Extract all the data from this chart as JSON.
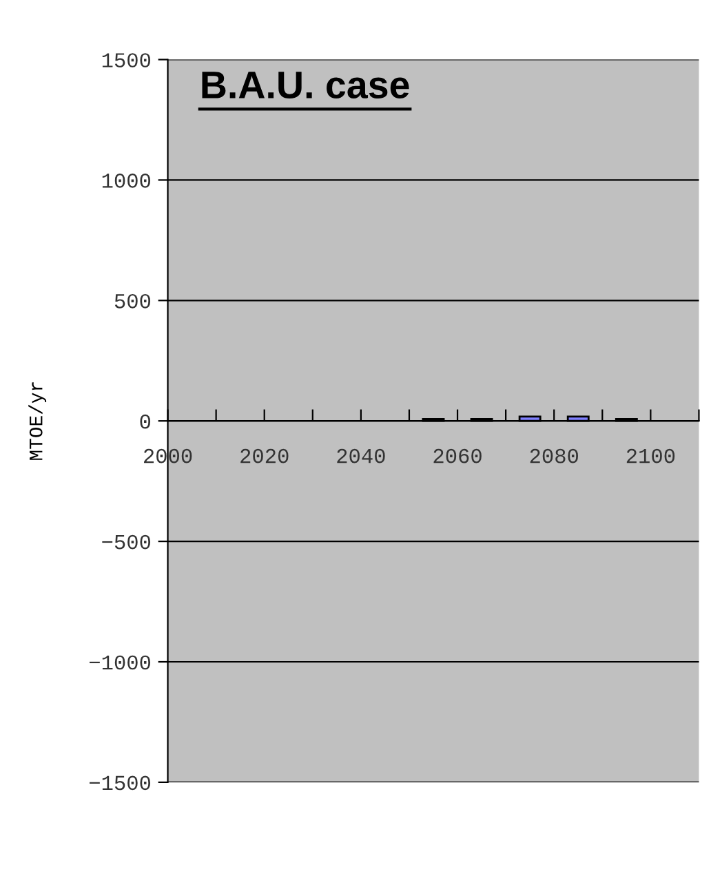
{
  "chart_data": {
    "type": "bar",
    "title": "B.A.U. case",
    "ylabel": "MTOE/yr",
    "x": [
      2055,
      2065,
      2075,
      2085,
      2095
    ],
    "series": [
      {
        "color": "#8080ff",
        "values": [
          8,
          8,
          18,
          18,
          8
        ]
      }
    ],
    "xlim": [
      2000,
      2110
    ],
    "xticks": [
      2000,
      {
        "value": 2010,
        "label": null
      },
      2020,
      {
        "value": 2030,
        "label": null
      },
      2040,
      {
        "value": 2050,
        "label": null
      },
      2060,
      {
        "value": 2070,
        "label": null
      },
      2080,
      {
        "value": 2090,
        "label": null
      },
      2100,
      {
        "value": 2110,
        "label": null
      }
    ],
    "ylim": [
      -1500,
      1500
    ],
    "yticks": [
      -1500,
      -1000,
      -500,
      0,
      500,
      1000,
      1500
    ],
    "grid": "y",
    "legend": false
  }
}
